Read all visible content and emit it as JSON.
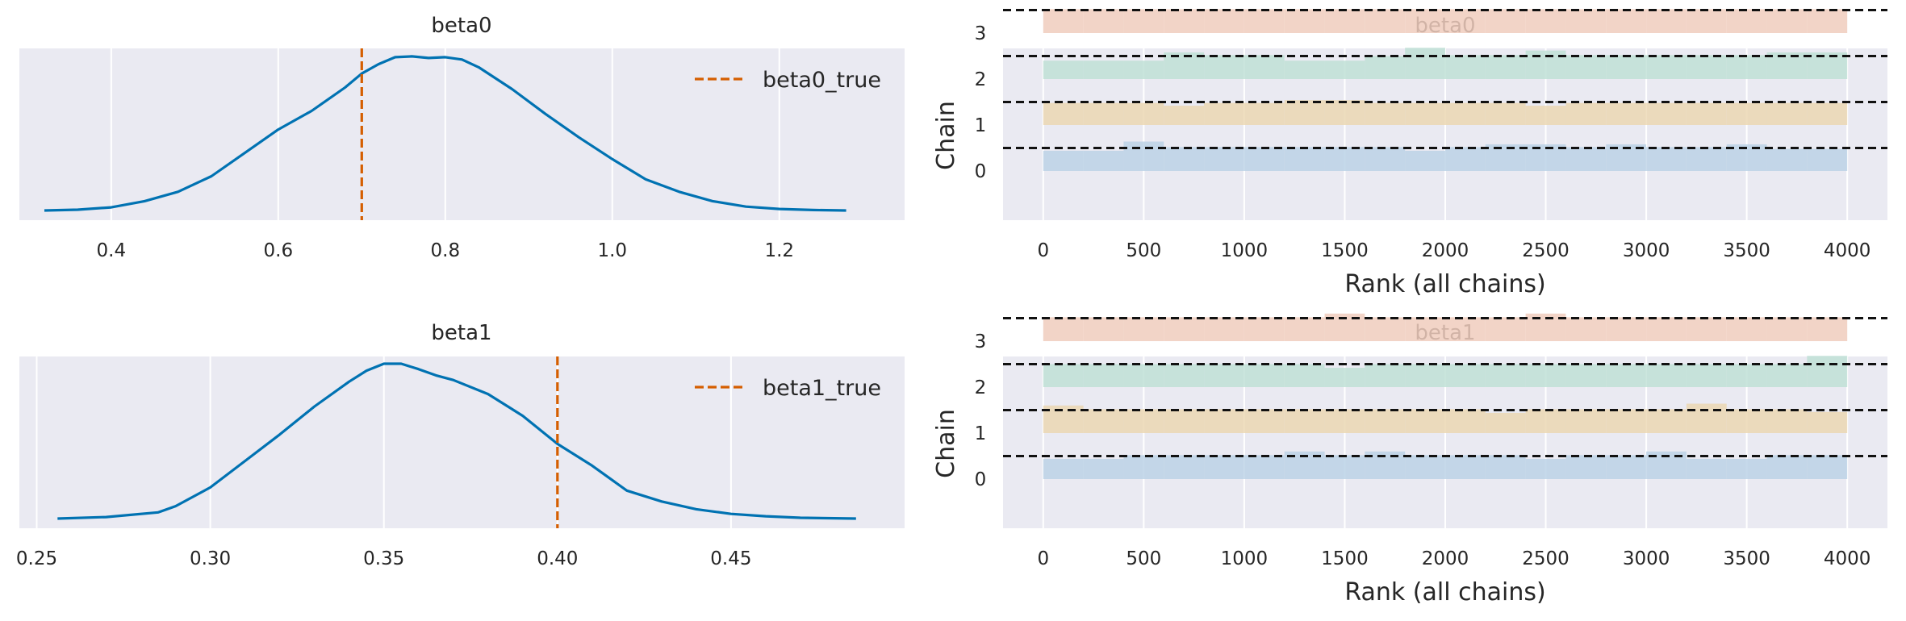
{
  "chart_data": [
    {
      "type": "line",
      "panel": "density",
      "title": "beta0",
      "xlabel": "",
      "ylabel": "",
      "xlim": [
        0.29,
        1.35
      ],
      "xticks": [
        0.4,
        0.6,
        0.8,
        1.0,
        1.2
      ],
      "xtick_labels": [
        "0.4",
        "0.6",
        "0.8",
        "1.0",
        "1.2"
      ],
      "grid": true,
      "legend_position": "top-right",
      "series": [
        {
          "color": "#0072b2",
          "x": [
            0.32,
            0.36,
            0.4,
            0.44,
            0.48,
            0.52,
            0.56,
            0.6,
            0.64,
            0.68,
            0.7,
            0.72,
            0.74,
            0.76,
            0.78,
            0.8,
            0.82,
            0.84,
            0.88,
            0.92,
            0.96,
            1.0,
            1.04,
            1.08,
            1.12,
            1.16,
            1.2,
            1.24,
            1.28
          ],
          "y": [
            0.0,
            0.005,
            0.02,
            0.06,
            0.12,
            0.22,
            0.37,
            0.52,
            0.64,
            0.79,
            0.88,
            0.94,
            0.985,
            0.99,
            0.98,
            0.985,
            0.97,
            0.92,
            0.78,
            0.62,
            0.47,
            0.33,
            0.2,
            0.12,
            0.06,
            0.025,
            0.01,
            0.003,
            0.0
          ]
        }
      ],
      "reference_line": {
        "name": "beta0_true",
        "x": 0.7,
        "color": "#d55e00"
      }
    },
    {
      "type": "line",
      "panel": "density",
      "title": "beta1",
      "xlabel": "",
      "ylabel": "",
      "xlim": [
        0.245,
        0.5
      ],
      "xticks": [
        0.25,
        0.3,
        0.35,
        0.4,
        0.45
      ],
      "xtick_labels": [
        "0.25",
        "0.30",
        "0.35",
        "0.40",
        "0.45"
      ],
      "grid": true,
      "legend_position": "top-right",
      "series": [
        {
          "color": "#0072b2",
          "x": [
            0.256,
            0.27,
            0.285,
            0.29,
            0.3,
            0.31,
            0.32,
            0.33,
            0.34,
            0.345,
            0.35,
            0.355,
            0.36,
            0.365,
            0.37,
            0.38,
            0.39,
            0.4,
            0.41,
            0.42,
            0.43,
            0.44,
            0.45,
            0.46,
            0.47,
            0.486
          ],
          "y": [
            0.0,
            0.01,
            0.04,
            0.08,
            0.2,
            0.37,
            0.54,
            0.72,
            0.88,
            0.95,
            0.995,
            0.995,
            0.96,
            0.92,
            0.89,
            0.8,
            0.66,
            0.48,
            0.34,
            0.18,
            0.11,
            0.06,
            0.03,
            0.015,
            0.005,
            0.0
          ]
        }
      ],
      "reference_line": {
        "name": "beta1_true",
        "x": 0.4,
        "color": "#d55e00"
      }
    },
    {
      "type": "bar",
      "panel": "rank",
      "title": "beta0",
      "xlabel": "Rank (all chains)",
      "ylabel": "Chain",
      "xlim": [
        -200,
        4200
      ],
      "xticks": [
        0,
        500,
        1000,
        1500,
        2000,
        2500,
        3000,
        3500,
        4000
      ],
      "yticks": [
        0,
        1,
        2,
        3
      ],
      "grid": true,
      "bin_edges": [
        0,
        200,
        400,
        600,
        800,
        1000,
        1200,
        1400,
        1600,
        1800,
        2000,
        2200,
        2400,
        2600,
        2800,
        3000,
        3200,
        3400,
        3600,
        3800,
        4000
      ],
      "reference_offset": 0.5,
      "series": [
        {
          "chain": 0,
          "color": "#bcd2e6",
          "values": [
            0.44,
            0.44,
            0.64,
            0.52,
            0.52,
            0.52,
            0.52,
            0.52,
            0.52,
            0.44,
            0.52,
            0.58,
            0.58,
            0.52,
            0.58,
            0.52,
            0.52,
            0.58,
            0.48,
            0.48
          ]
        },
        {
          "chain": 1,
          "color": "#ebd7b3",
          "values": [
            0.48,
            0.48,
            0.48,
            0.42,
            0.48,
            0.48,
            0.54,
            0.54,
            0.48,
            0.48,
            0.48,
            0.48,
            0.42,
            0.48,
            0.48,
            0.48,
            0.48,
            0.48,
            0.48,
            0.48
          ]
        },
        {
          "chain": 2,
          "color": "#bfe0d6",
          "values": [
            0.4,
            0.4,
            0.4,
            0.58,
            0.52,
            0.52,
            0.4,
            0.4,
            0.5,
            0.68,
            0.52,
            0.52,
            0.62,
            0.52,
            0.52,
            0.52,
            0.52,
            0.52,
            0.58,
            0.58
          ]
        },
        {
          "chain": 3,
          "color": "#f0cdbd",
          "values": [
            0.52,
            0.52,
            0.52,
            0.52,
            0.52,
            0.52,
            0.52,
            0.52,
            0.52,
            0.52,
            0.52,
            0.52,
            0.52,
            0.52,
            0.52,
            0.52,
            0.52,
            0.52,
            0.52,
            0.52
          ]
        }
      ]
    },
    {
      "type": "bar",
      "panel": "rank",
      "title": "beta1",
      "xlabel": "Rank (all chains)",
      "ylabel": "Chain",
      "xlim": [
        -200,
        4200
      ],
      "xticks": [
        0,
        500,
        1000,
        1500,
        2000,
        2500,
        3000,
        3500,
        4000
      ],
      "yticks": [
        0,
        1,
        2,
        3
      ],
      "grid": true,
      "bin_edges": [
        0,
        200,
        400,
        600,
        800,
        1000,
        1200,
        1400,
        1600,
        1800,
        2000,
        2200,
        2400,
        2600,
        2800,
        3000,
        3200,
        3400,
        3600,
        3800,
        4000
      ],
      "reference_offset": 0.5,
      "series": [
        {
          "chain": 0,
          "color": "#bcd2e6",
          "values": [
            0.44,
            0.44,
            0.52,
            0.52,
            0.52,
            0.52,
            0.6,
            0.52,
            0.6,
            0.52,
            0.52,
            0.52,
            0.44,
            0.52,
            0.52,
            0.6,
            0.44,
            0.44,
            0.52,
            0.52
          ]
        },
        {
          "chain": 1,
          "color": "#ebd7b3",
          "values": [
            0.6,
            0.52,
            0.52,
            0.52,
            0.52,
            0.52,
            0.52,
            0.52,
            0.52,
            0.52,
            0.52,
            0.44,
            0.52,
            0.52,
            0.52,
            0.52,
            0.64,
            0.52,
            0.52,
            0.46
          ]
        },
        {
          "chain": 2,
          "color": "#bfe0d6",
          "values": [
            0.5,
            0.5,
            0.5,
            0.5,
            0.5,
            0.5,
            0.5,
            0.42,
            0.5,
            0.5,
            0.5,
            0.5,
            0.5,
            0.5,
            0.5,
            0.5,
            0.5,
            0.5,
            0.5,
            0.68
          ]
        },
        {
          "chain": 3,
          "color": "#f0cdbd",
          "values": [
            0.52,
            0.52,
            0.52,
            0.52,
            0.52,
            0.52,
            0.52,
            0.6,
            0.52,
            0.52,
            0.52,
            0.52,
            0.6,
            0.52,
            0.52,
            0.52,
            0.52,
            0.52,
            0.52,
            0.52
          ]
        }
      ]
    }
  ]
}
